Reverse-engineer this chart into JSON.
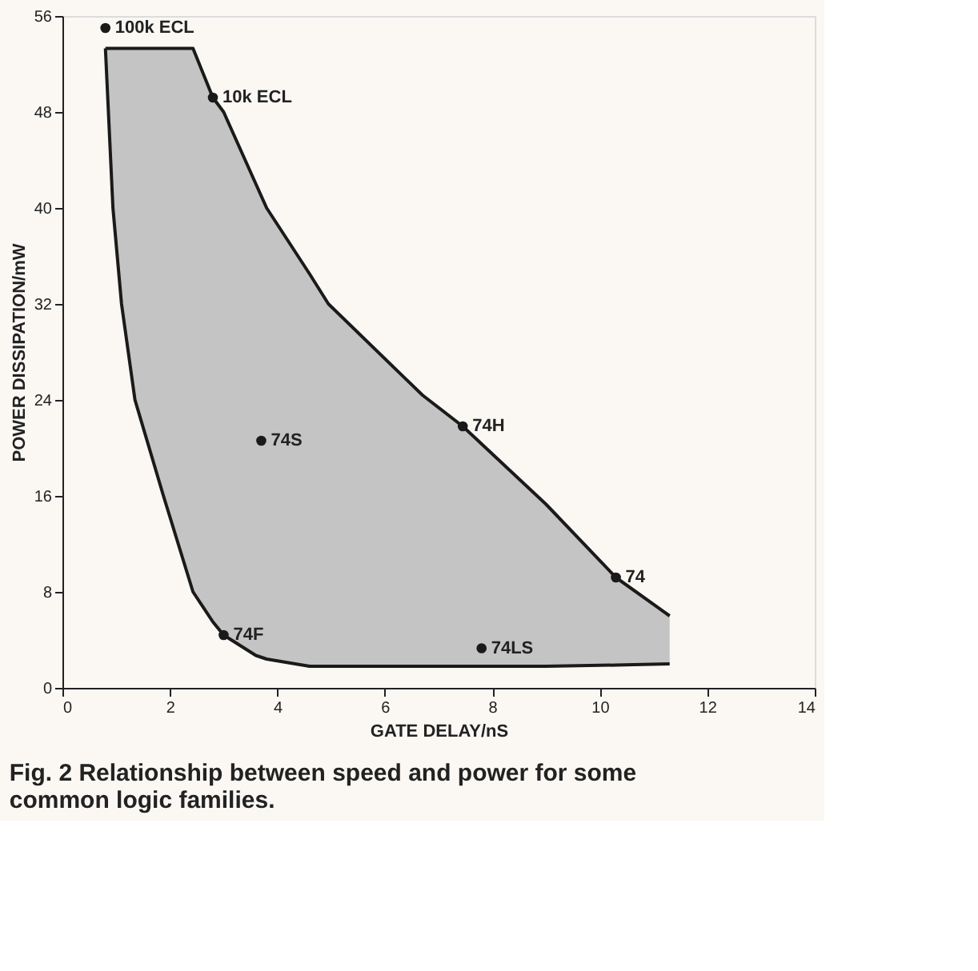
{
  "chart_data": {
    "type": "scatter",
    "xlabel": "GATE DELAY/nS",
    "ylabel": "POWER DISSIPATION/mW",
    "xlim": [
      0,
      14
    ],
    "xticks": [
      0,
      2,
      4,
      6,
      8,
      10,
      12,
      14
    ],
    "ylim": [
      0,
      56
    ],
    "yticks": [
      0,
      8,
      16,
      24,
      32,
      40,
      48,
      56
    ],
    "grid": false,
    "series": [
      {
        "type": "line",
        "color": "#1a1a1a",
        "marker": "none",
        "x": [
          0.8,
          0.94,
          1.1,
          1.35,
          1.88,
          2.43,
          2.8,
          3.0,
          3.6,
          3.8,
          4.6,
          4.95,
          6.7,
          7.45,
          9.0,
          10.3,
          11.3
        ],
        "values": [
          53.3,
          53.3,
          53.3,
          53.3,
          53.3,
          53.3,
          49.2,
          48,
          42,
          40,
          34.5,
          32,
          24.4,
          21.8,
          15.3,
          9.2,
          6.0
        ],
        "upper": [
          53.3,
          53.3,
          53.3,
          53.3,
          53.3,
          53.3,
          49.2,
          48,
          42,
          40,
          34.5,
          32,
          24.4,
          21.8,
          15.3,
          9.2,
          6.0
        ],
        "lower": [
          53.3,
          40,
          32,
          24,
          16,
          8,
          5.5,
          4.4,
          2.7,
          2.4,
          1.8,
          1.8,
          1.8,
          1.8,
          1.8,
          1.9,
          2.0
        ]
      },
      {
        "type": "line",
        "color": "#1a1a1a",
        "marker": "none",
        "x": [
          0.8,
          0.94,
          1.1,
          1.35,
          1.88,
          2.43,
          2.8,
          3.0,
          3.6,
          3.8,
          4.6,
          4.95,
          6.7,
          7.45,
          9.0,
          10.3,
          11.3
        ],
        "values": [
          53.3,
          40,
          32,
          24,
          16,
          8,
          5.5,
          4.4,
          2.7,
          2.4,
          1.8,
          1.8,
          1.8,
          1.8,
          1.8,
          1.9,
          2.0
        ]
      },
      {
        "color": "#1a1a1a",
        "marker": "circle",
        "x": [
          0.8,
          2.8,
          3.7,
          7.45,
          10.3,
          7.8,
          3.0
        ],
        "values": [
          55,
          49.2,
          20.6,
          21.8,
          9.2,
          3.3,
          4.4
        ]
      }
    ],
    "annotations": [
      {
        "text": "100k ECL",
        "x": 0.8,
        "y": 55
      },
      {
        "text": "10k ECL",
        "x": 2.8,
        "y": 49.2
      },
      {
        "text": "74S",
        "x": 3.7,
        "y": 20.6
      },
      {
        "text": "74H",
        "x": 7.45,
        "y": 21.8
      },
      {
        "text": "74",
        "x": 10.3,
        "y": 9.2
      },
      {
        "text": "74LS",
        "x": 7.8,
        "y": 3.3
      },
      {
        "text": "74F",
        "x": 3.0,
        "y": 4.4
      },
      "Fig. 2 Relationship between speed and power for some common logic families."
    ]
  }
}
